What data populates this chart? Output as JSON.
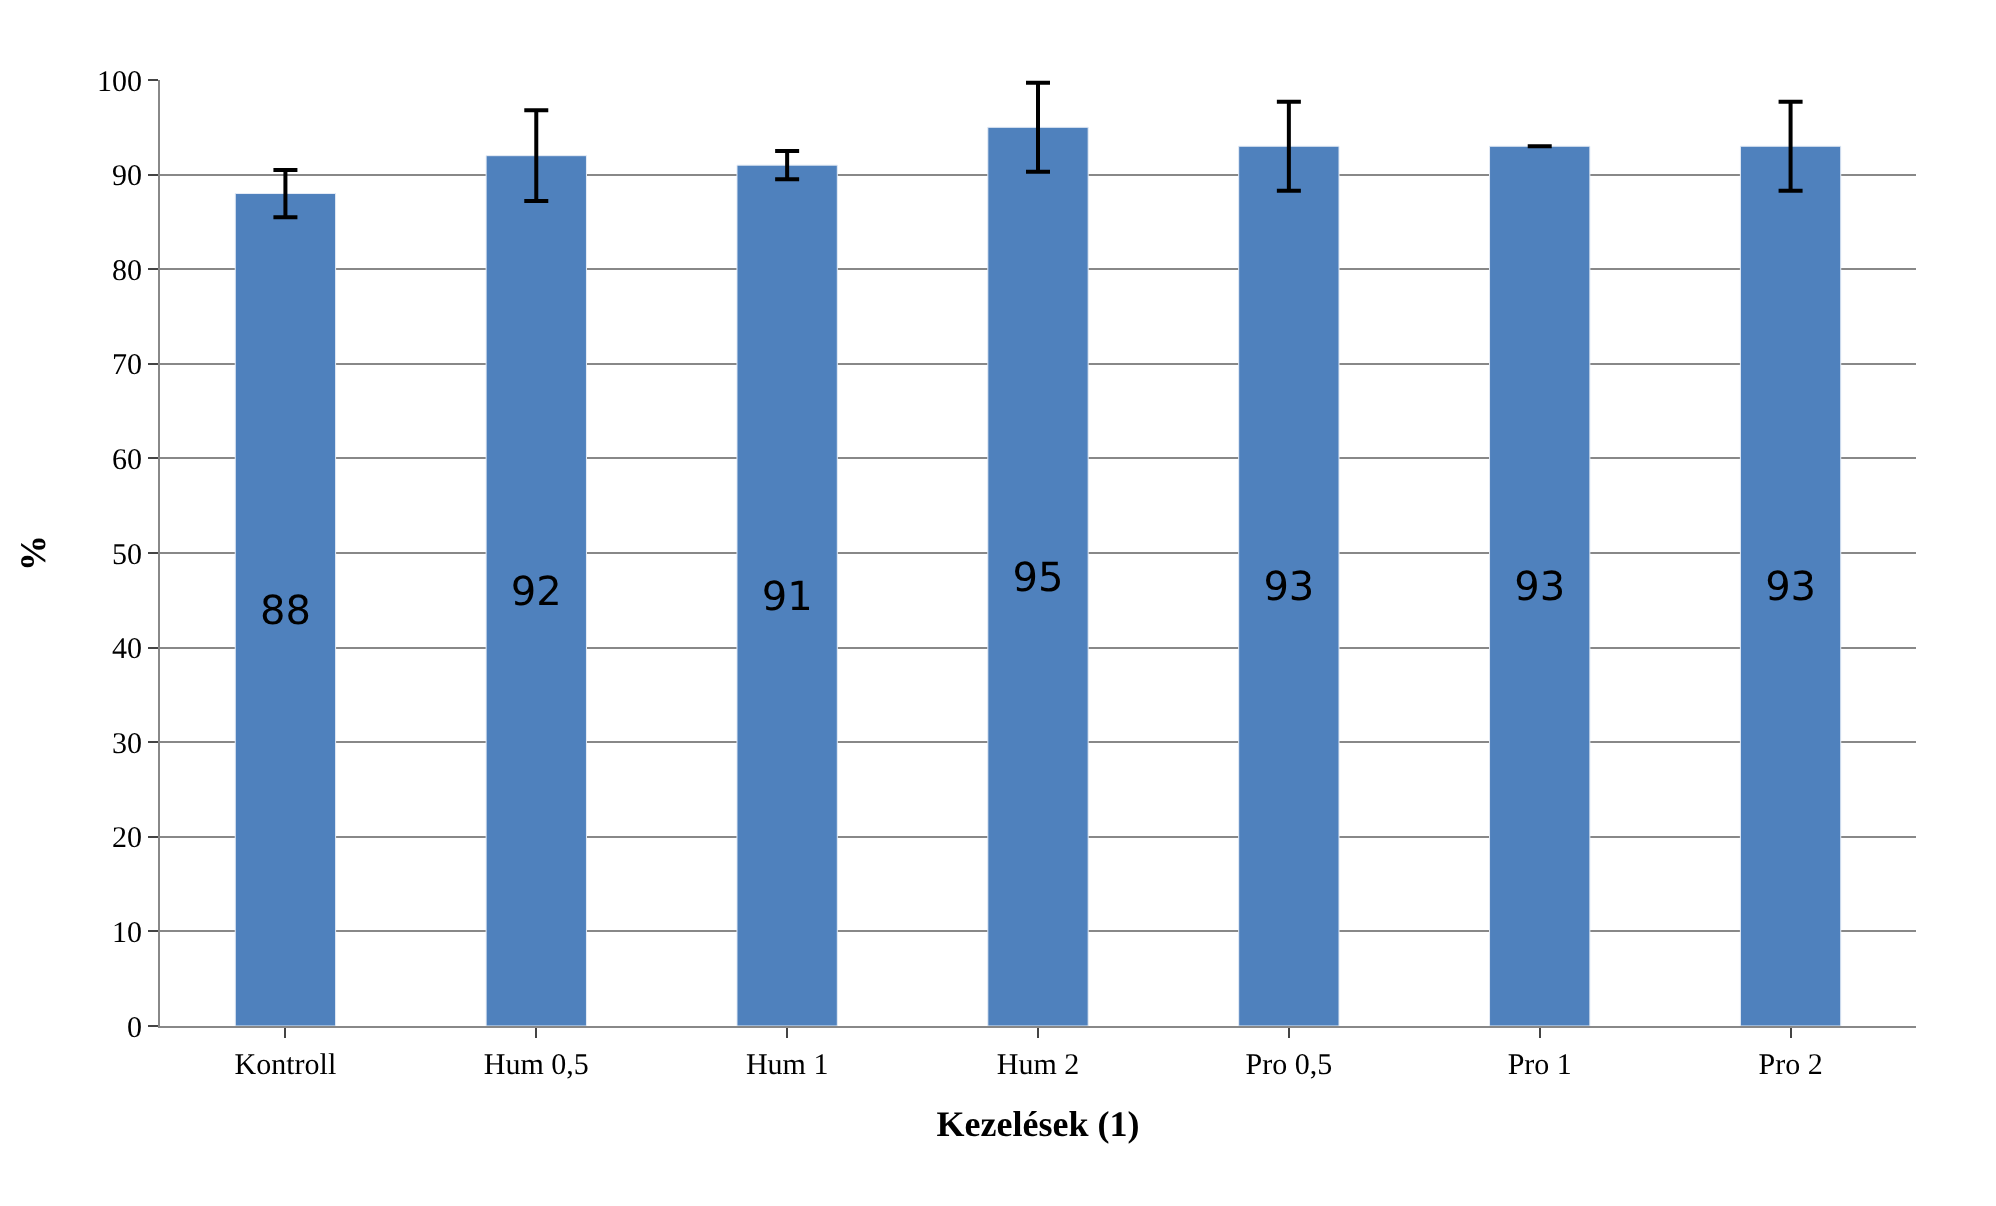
{
  "chart_data": {
    "type": "bar",
    "xlabel": "Kezelések (1)",
    "ylabel": "%",
    "categories": [
      "Kontroll",
      "Hum 0,5",
      "Hum 1",
      "Hum 2",
      "Pro 0,5",
      "Pro 1",
      "Pro 2"
    ],
    "values": [
      88,
      92,
      91,
      95,
      93,
      93,
      93
    ],
    "errors": [
      2.5,
      4.8,
      1.5,
      4.7,
      4.7,
      null,
      4.7
    ],
    "color": "#4f81bd",
    "ylim": [
      0,
      100
    ],
    "yticks": [
      0,
      10,
      20,
      30,
      40,
      50,
      60,
      70,
      80,
      90,
      100
    ],
    "grid": "y",
    "data_labels": true
  }
}
